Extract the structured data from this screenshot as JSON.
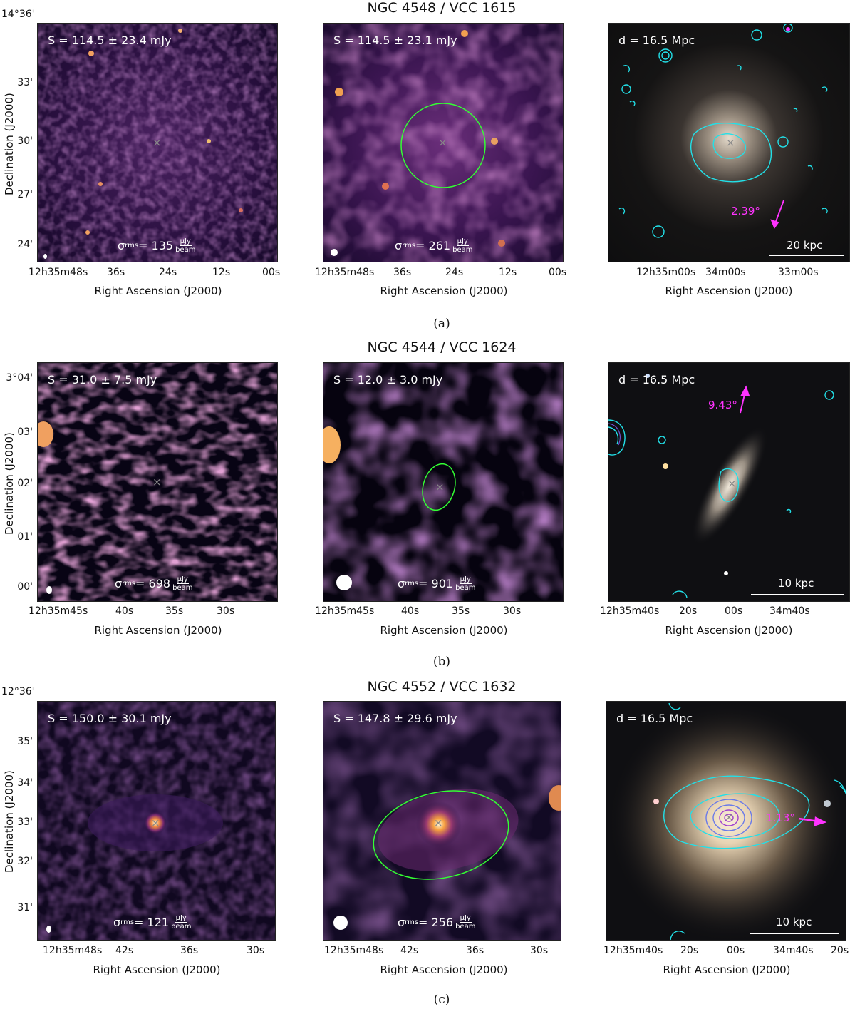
{
  "rows": [
    {
      "title": "NGC 4548 / VCC 1615",
      "caption": "(a)",
      "p1": {
        "flux": "S = 114.5 ± 23.4 mJy",
        "sigma": "σ",
        "sigma_sub": "rms",
        "sigma_val": " = 135 ",
        "unit_num": "μJy",
        "unit_den": "beam"
      },
      "p2": {
        "flux": "S = 114.5 ± 23.1 mJy",
        "sigma": "σ",
        "sigma_sub": "rms",
        "sigma_val": " = 261 ",
        "unit_num": "μJy",
        "unit_den": "beam"
      },
      "p3": {
        "dist": "d = 16.5 Mpc",
        "arrow": "2.39°",
        "scale": "20 kpc"
      },
      "xticks12": [
        "12h35m48s",
        "36s",
        "24s",
        "12s",
        "00s"
      ],
      "xticks3": [
        "12h35m00s",
        "34m00s",
        "33m00s"
      ],
      "yticks": [
        "14°36'",
        "33'",
        "30'",
        "27'",
        "24'"
      ]
    },
    {
      "title": "NGC 4544 / VCC 1624",
      "caption": "(b)",
      "p1": {
        "flux": "S = 31.0 ± 7.5 mJy",
        "sigma": "σ",
        "sigma_sub": "rms",
        "sigma_val": " = 698 ",
        "unit_num": "μJy",
        "unit_den": "beam"
      },
      "p2": {
        "flux": "S = 12.0 ± 3.0 mJy",
        "sigma": "σ",
        "sigma_sub": "rms",
        "sigma_val": " = 901 ",
        "unit_num": "μJy",
        "unit_den": "beam"
      },
      "p3": {
        "dist": "d = 16.5 Mpc",
        "arrow": "9.43°",
        "scale": "10 kpc"
      },
      "xticks12": [
        "12h35m45s",
        "40s",
        "35s",
        "30s"
      ],
      "xticks3": [
        "12h35m40s",
        "20s",
        "00s",
        "34m40s"
      ],
      "yticks": [
        "3°04'",
        "03'",
        "02'",
        "01'",
        "00'"
      ]
    },
    {
      "title": "NGC 4552 / VCC 1632",
      "caption": "(c)",
      "p1": {
        "flux": "S = 150.0 ± 30.1 mJy",
        "sigma": "σ",
        "sigma_sub": "rms",
        "sigma_val": " = 121 ",
        "unit_num": "μJy",
        "unit_den": "beam"
      },
      "p2": {
        "flux": "S = 147.8 ± 29.6 mJy",
        "sigma": "σ",
        "sigma_sub": "rms",
        "sigma_val": " = 256 ",
        "unit_num": "μJy",
        "unit_den": "beam"
      },
      "p3": {
        "dist": "d = 16.5 Mpc",
        "arrow": "1.13°",
        "scale": "10 kpc"
      },
      "xticks12": [
        "12h35m48s",
        "42s",
        "36s",
        "30s"
      ],
      "xticks3": [
        "12h35m40s",
        "20s",
        "00s",
        "34m40s",
        "20s"
      ],
      "yticks": [
        "12°36'",
        "35'",
        "34'",
        "33'",
        "32'",
        "31'"
      ]
    }
  ],
  "labels": {
    "xaxis": "Right Ascension (J2000)",
    "yaxis": "Declination (J2000)"
  },
  "colors": {
    "radio_dark": "#0d0620",
    "radio_mid": "#5a2a7a",
    "radio_bright": "#e87a5a",
    "contour": "#22e0e8",
    "arrow": "#ff33ff",
    "ellipse": "#33ff33"
  }
}
